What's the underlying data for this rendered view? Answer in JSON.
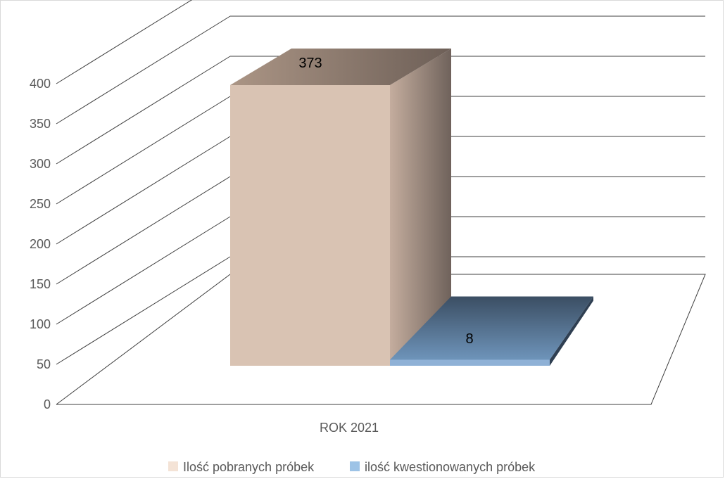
{
  "chart_data": {
    "type": "bar",
    "categories": [
      "ROK 2021"
    ],
    "series": [
      {
        "name": "Ilość pobranych próbek",
        "values": [
          373
        ],
        "color": "#d9c3b3"
      },
      {
        "name": "ilość kwestionowanych próbek",
        "values": [
          8
        ],
        "color": "#6f95b8"
      }
    ],
    "yticks": [
      0,
      50,
      100,
      150,
      200,
      250,
      300,
      350,
      400
    ],
    "ylim": [
      0,
      400
    ],
    "data_labels": [
      "373",
      "8"
    ],
    "legend_position": "bottom",
    "grid": true,
    "three_d": true
  }
}
